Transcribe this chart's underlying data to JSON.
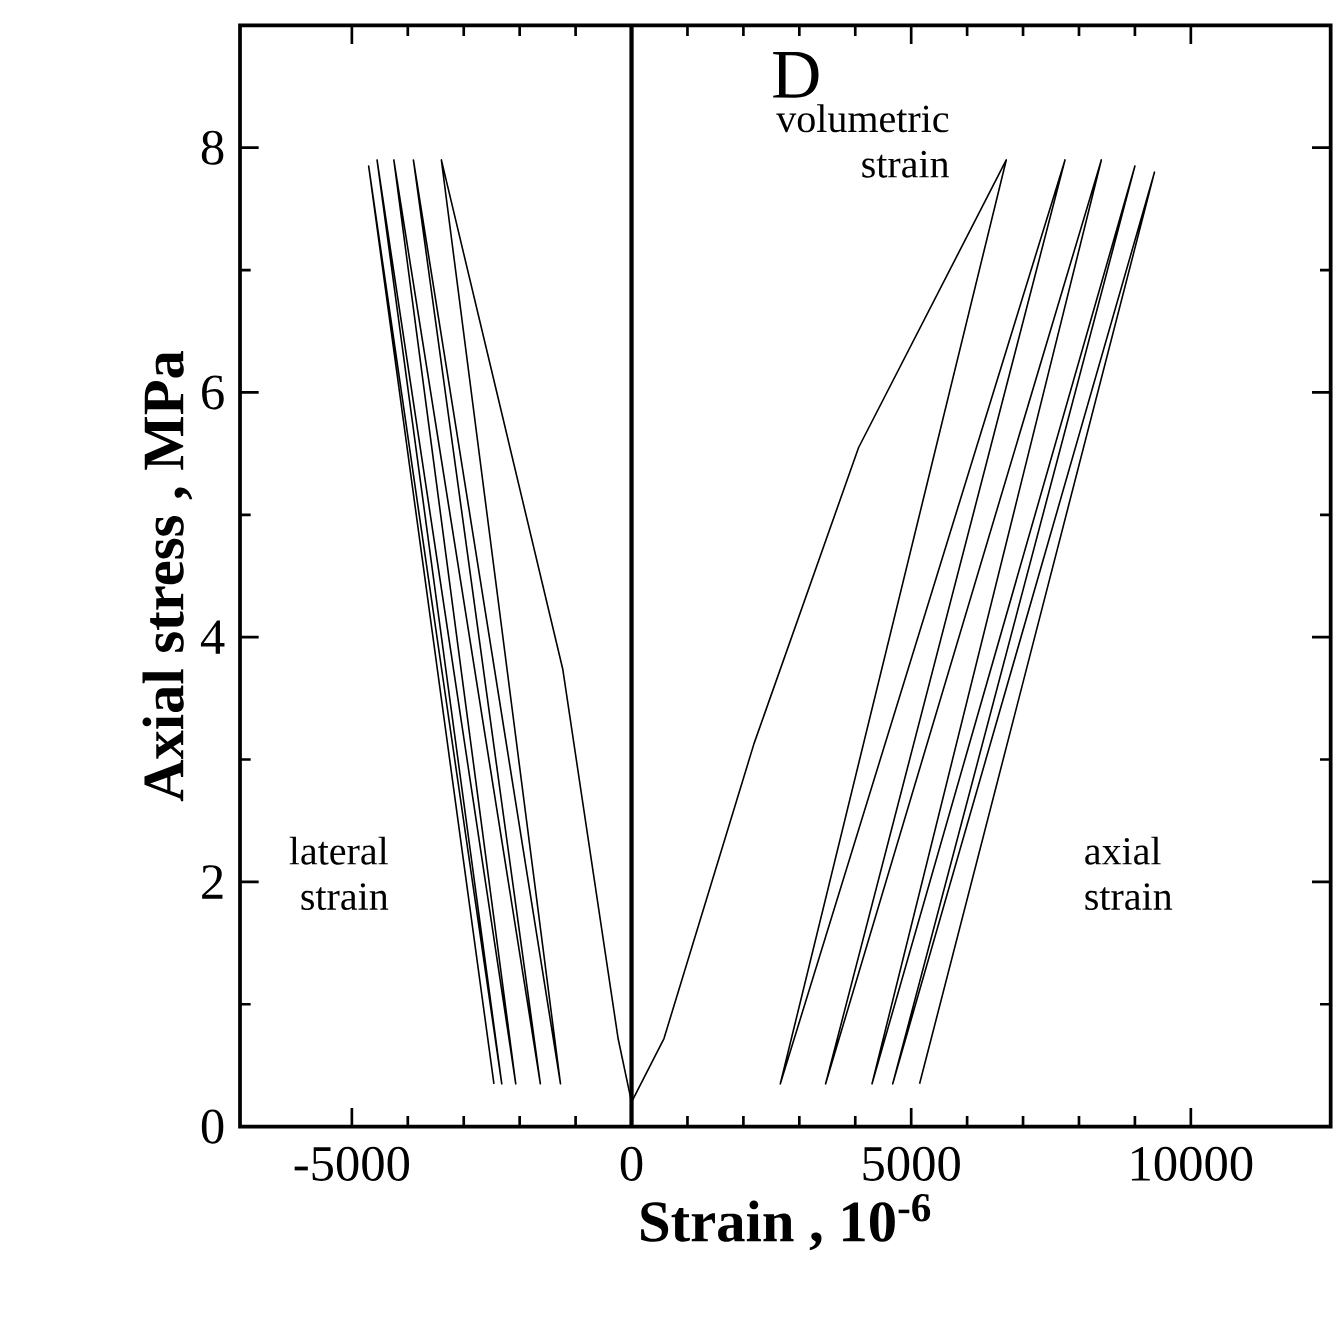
{
  "chart_data": {
    "type": "line",
    "xlabel": "Strain , 10$^{-6}$",
    "ylabel": "Axial stress , MPa",
    "annotations": [
      "D",
      "volumetric strain",
      "lateral strain",
      "axial strain"
    ],
    "xlim": [
      -7000,
      12500
    ],
    "ylim": [
      0,
      9
    ],
    "xticks": [
      -5000,
      0,
      5000,
      10000
    ],
    "yticks": [
      0,
      2,
      4,
      6,
      8
    ],
    "marker": "none",
    "line_style": "solid",
    "ref_lines": [
      {
        "axis": "x",
        "value": 0,
        "color": "#000000"
      }
    ],
    "series": [
      {
        "color": "#000000",
        "x": [
          0,
          -240,
          -1230,
          -3400,
          -1270,
          -3900,
          -1630,
          -4250,
          -2070,
          -4550,
          -2320,
          -4700,
          -2460
        ],
        "values": [
          0.2,
          0.72,
          3.74,
          7.9,
          0.35,
          7.9,
          0.35,
          7.9,
          0.35,
          7.9,
          0.35,
          7.85,
          0.35
        ]
      },
      {
        "color": "#000000",
        "x": [
          0,
          580,
          2190,
          4060,
          6700,
          2660,
          7750,
          3470,
          8400,
          4300,
          9000,
          4670,
          9350,
          5150
        ],
        "values": [
          0.2,
          0.72,
          3.13,
          5.55,
          7.9,
          0.35,
          7.9,
          0.35,
          7.9,
          0.35,
          7.85,
          0.35,
          7.8,
          0.35
        ]
      }
    ]
  }
}
